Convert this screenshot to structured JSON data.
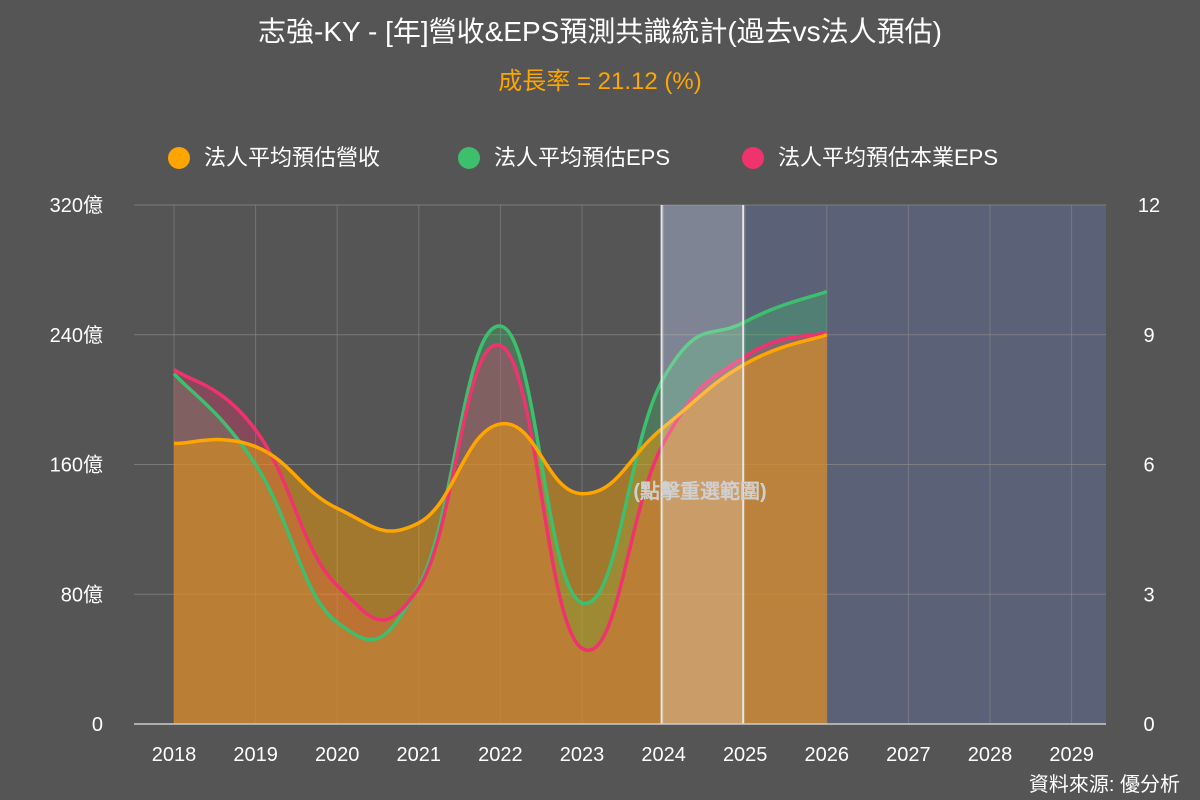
{
  "header": {
    "title": "志強-KY - [年]營收&EPS預測共識統計(過去vs法人預估)",
    "subtitle": "成長率 = 21.12 (%)"
  },
  "legend": [
    {
      "label": "法人平均預估營收",
      "color": "#ffa500"
    },
    {
      "label": "法人平均預估EPS",
      "color": "#3dbf6e"
    },
    {
      "label": "法人平均預估本業EPS",
      "color": "#f0336e"
    }
  ],
  "footer": {
    "source": "資料來源: 優分析"
  },
  "chart_data": {
    "type": "area",
    "x": [
      "2018",
      "2019",
      "2020",
      "2021",
      "2022",
      "2023",
      "2024",
      "2025",
      "2026",
      "2027",
      "2028",
      "2029"
    ],
    "y_left": {
      "range": [
        0,
        320
      ],
      "ticks": [
        0,
        80,
        160,
        240,
        320
      ],
      "tick_labels": [
        "0",
        "80億",
        "160億",
        "240億",
        "320億"
      ]
    },
    "y_right": {
      "range": [
        0,
        12
      ],
      "ticks": [
        0,
        3,
        6,
        9,
        12
      ],
      "tick_labels": [
        "0",
        "3",
        "6",
        "9",
        "12"
      ]
    },
    "series": [
      {
        "name": "法人平均預估營收",
        "axis": "left",
        "color": "#ffa500",
        "values": [
          173,
          171,
          133,
          124,
          185,
          142,
          183,
          222,
          240,
          null,
          null,
          null
        ]
      },
      {
        "name": "法人平均預估EPS",
        "axis": "right",
        "color": "#3dbf6e",
        "values": [
          8.1,
          6.0,
          2.35,
          3.2,
          9.2,
          2.8,
          8.0,
          9.3,
          10.0,
          null,
          null,
          null
        ]
      },
      {
        "name": "法人平均預估本業EPS",
        "axis": "right",
        "color": "#f0336e",
        "values": [
          8.2,
          6.8,
          3.2,
          3.15,
          8.75,
          1.75,
          6.5,
          8.5,
          9.05,
          null,
          null,
          null
        ]
      }
    ],
    "forecast_region": {
      "from": "2024",
      "to": "2029",
      "color": "#5b6277"
    },
    "selection_band": {
      "from": "2024",
      "to": "2025",
      "label": "(點擊重選範圍)"
    },
    "grid": true,
    "legend_position": "top-center"
  }
}
